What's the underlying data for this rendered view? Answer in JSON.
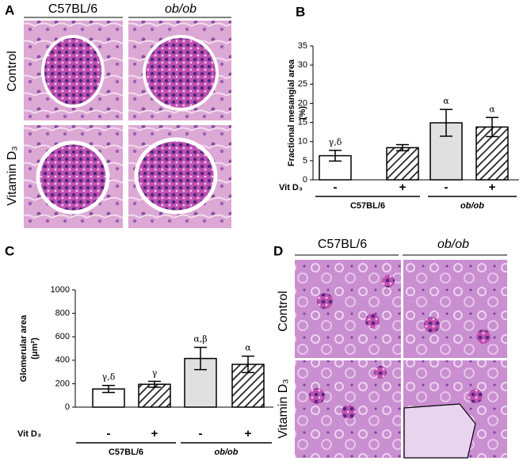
{
  "panels": {
    "a": {
      "letter": "A",
      "columns": [
        "C57BL/6",
        "ob/ob"
      ],
      "rows": [
        "Control",
        "Vitamin D₃"
      ]
    },
    "b": {
      "letter": "B"
    },
    "c": {
      "letter": "C"
    },
    "d": {
      "letter": "D",
      "columns": [
        "C57BL/6",
        "ob/ob"
      ],
      "rows": [
        "Control",
        "Vitamin D₃"
      ]
    }
  },
  "chart_data": [
    {
      "type": "bar",
      "ylabel": [
        "Fractional mesangial area",
        "(%)"
      ],
      "xlabel": "Vit D₃",
      "categories": [
        "-",
        "+",
        "-",
        "+"
      ],
      "groups": [
        "C57BL/6",
        "ob/ob"
      ],
      "values": [
        6.3,
        8.4,
        14.9,
        13.8
      ],
      "errors": [
        1.4,
        0.8,
        3.5,
        2.5
      ],
      "annotations": [
        "γ,δ",
        null,
        "α",
        "α"
      ],
      "colors": [
        "#ffffff",
        "#ffffff",
        "#e0e0e0",
        "#ffffff"
      ],
      "bar_styles": [
        "plain",
        "hatched",
        "plain",
        "hatched"
      ],
      "ylim": [
        0,
        35
      ],
      "yticks": [
        0,
        5,
        10,
        15,
        20,
        25,
        30,
        35
      ]
    },
    {
      "type": "bar",
      "ylabel": [
        "Glomerular area",
        "(μm²)"
      ],
      "xlabel": "Vit D₃",
      "categories": [
        "-",
        "+",
        "-",
        "+"
      ],
      "groups": [
        "C57BL/6",
        "ob/ob"
      ],
      "values": [
        155,
        195,
        415,
        365
      ],
      "errors": [
        30,
        25,
        95,
        70
      ],
      "annotations": [
        "γ,δ",
        "γ",
        "α,β",
        "α"
      ],
      "colors": [
        "#ffffff",
        "#ffffff",
        "#e0e0e0",
        "#ffffff"
      ],
      "bar_styles": [
        "plain",
        "hatched",
        "plain",
        "hatched"
      ],
      "ylim": [
        0,
        1000
      ],
      "yticks": [
        0,
        200,
        400,
        600,
        800,
        1000
      ]
    }
  ]
}
